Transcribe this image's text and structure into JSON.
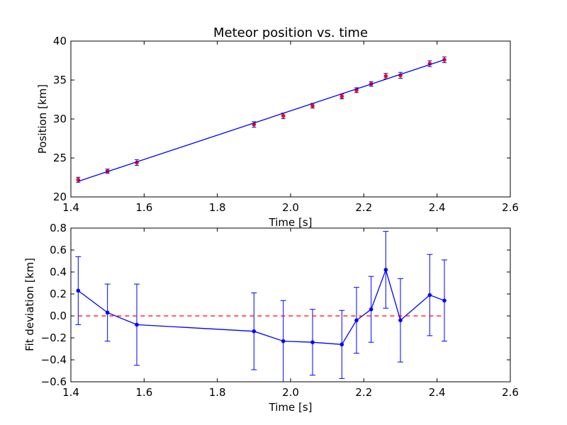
{
  "chart_data": [
    {
      "type": "scatter",
      "title": "Meteor position vs. time",
      "xlabel": "Time [s]",
      "ylabel": "Position [km]",
      "xlim": [
        1.4,
        2.6
      ],
      "ylim": [
        20,
        40
      ],
      "xticks": [
        "1.4",
        "1.6",
        "1.8",
        "2.0",
        "2.2",
        "2.4",
        "2.6"
      ],
      "yticks": [
        "20",
        "25",
        "30",
        "35",
        "40"
      ],
      "grid": false,
      "series": [
        {
          "kind": "points-with-errorbars",
          "color": "#ff0000",
          "errorbar_color": "#0000ff",
          "x": [
            1.42,
            1.5,
            1.58,
            1.9,
            1.98,
            2.06,
            2.14,
            2.18,
            2.22,
            2.26,
            2.3,
            2.38,
            2.42
          ],
          "y": [
            22.2,
            23.3,
            24.4,
            29.3,
            30.4,
            31.7,
            32.9,
            33.7,
            34.5,
            35.5,
            35.6,
            37.1,
            37.6
          ],
          "yerr": [
            0.32,
            0.27,
            0.37,
            0.35,
            0.36,
            0.3,
            0.31,
            0.31,
            0.3,
            0.35,
            0.38,
            0.37,
            0.37
          ]
        },
        {
          "kind": "fit-line",
          "color": "#0000ff",
          "x": [
            1.42,
            2.42
          ],
          "y": [
            22.0,
            37.6
          ]
        }
      ]
    },
    {
      "type": "line",
      "title": "",
      "xlabel": "Time [s]",
      "ylabel": "Fit deviation [km]",
      "xlim": [
        1.4,
        2.6
      ],
      "ylim": [
        -0.6,
        0.8
      ],
      "xticks": [
        "1.4",
        "1.6",
        "1.8",
        "2.0",
        "2.2",
        "2.4",
        "2.6"
      ],
      "yticks": [
        "−0.6",
        "−0.4",
        "−0.2",
        "0.0",
        "0.2",
        "0.4",
        "0.6",
        "0.8"
      ],
      "grid": false,
      "series": [
        {
          "kind": "line-with-errorbars",
          "color": "#0000ff",
          "x": [
            1.42,
            1.5,
            1.58,
            1.9,
            1.98,
            2.06,
            2.14,
            2.18,
            2.22,
            2.26,
            2.3,
            2.38,
            2.42
          ],
          "y": [
            0.23,
            0.03,
            -0.08,
            -0.14,
            -0.23,
            -0.24,
            -0.26,
            -0.04,
            0.06,
            0.42,
            -0.04,
            0.19,
            0.14
          ],
          "yerr": [
            0.31,
            0.26,
            0.37,
            0.35,
            0.37,
            0.3,
            0.31,
            0.3,
            0.3,
            0.35,
            0.38,
            0.37,
            0.37
          ]
        },
        {
          "kind": "zero-reference",
          "color": "#ff0000",
          "style": "dashed",
          "x": [
            1.42,
            2.42
          ],
          "y": [
            0.0,
            0.0
          ]
        }
      ]
    }
  ]
}
